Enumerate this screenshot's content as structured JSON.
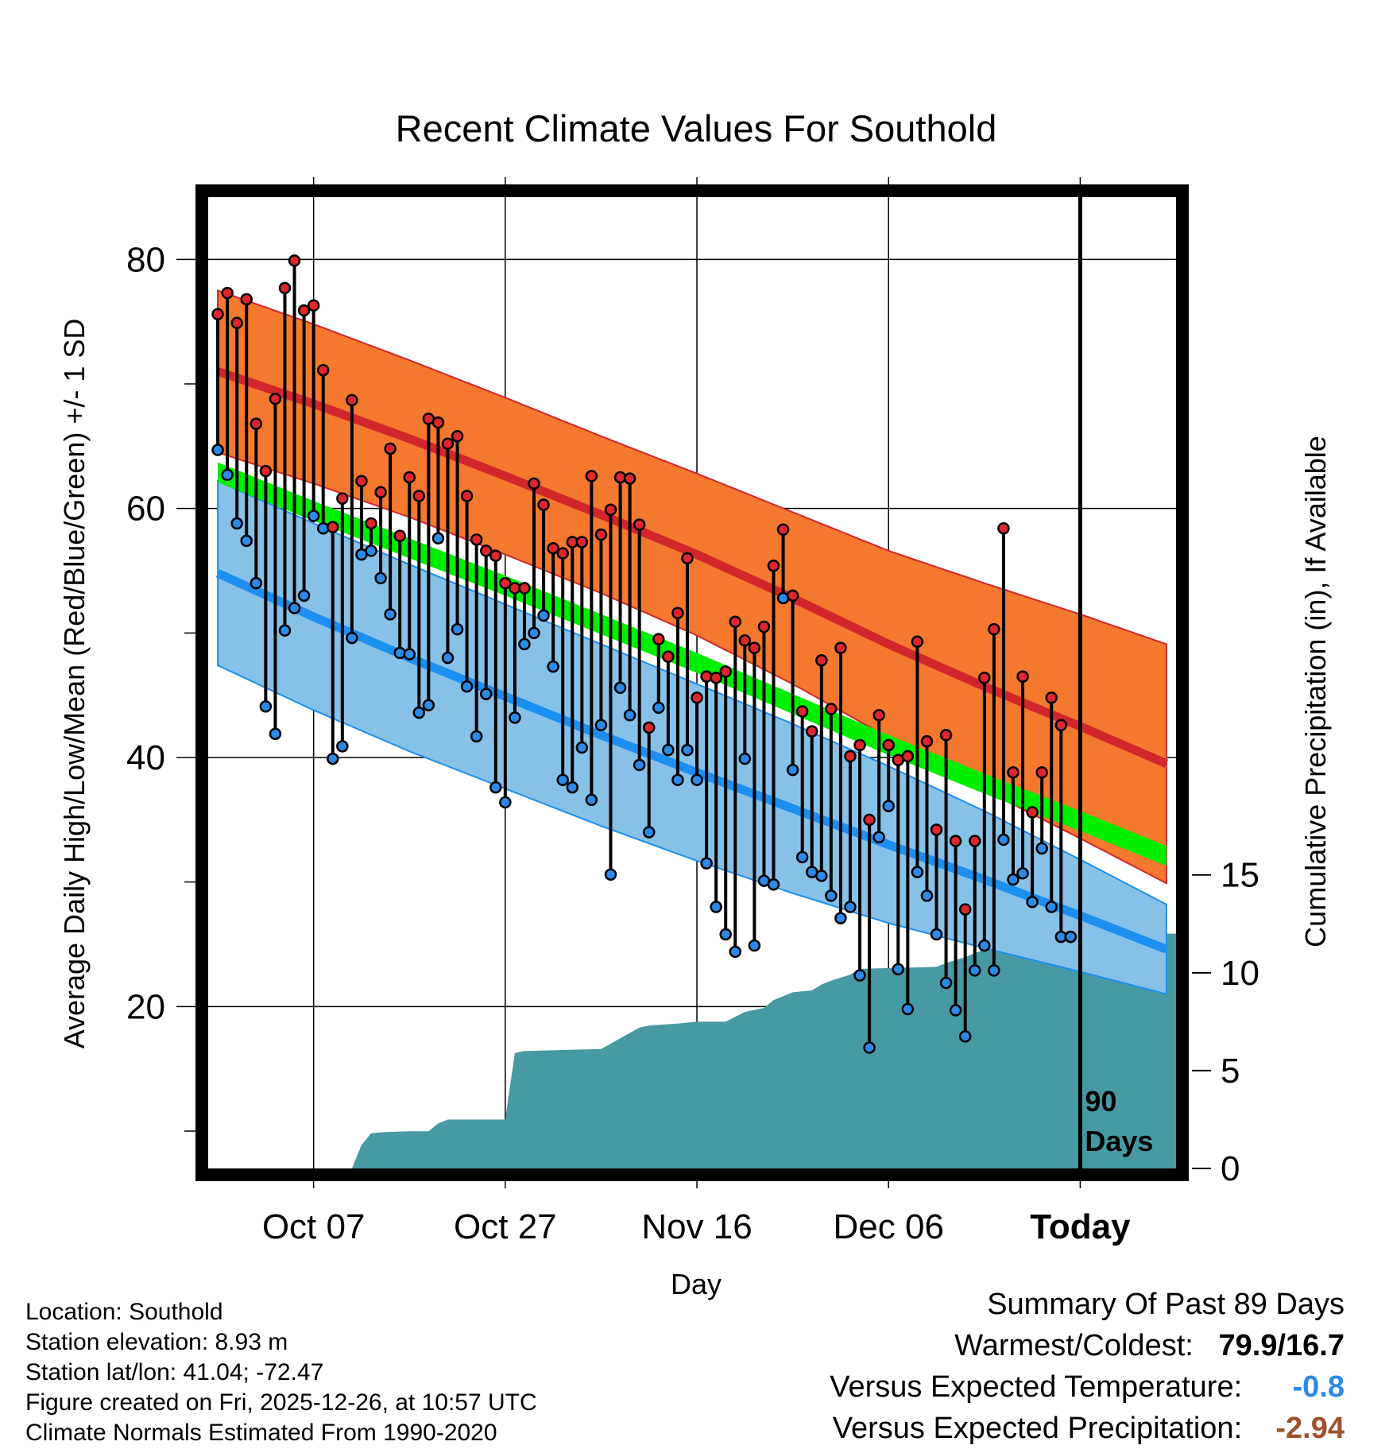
{
  "chart_data": {
    "type": "line",
    "title": "Recent Climate Values For Southold",
    "xlabel": "Day",
    "ylabel_left": "Average Daily High/Low/Mean (Red/Blue/Green) +/- 1 SD",
    "ylabel_right": "Cumulative Precipitation (in), If Available",
    "x_tick_labels": [
      "Oct 07",
      "Oct 27",
      "Nov 16",
      "Dec 06",
      "Today"
    ],
    "x_tick_days": [
      10,
      30,
      50,
      70,
      90
    ],
    "xlim": [
      -1,
      100
    ],
    "ylim_left": [
      7,
      85
    ],
    "y_ticks_left": [
      20,
      40,
      60,
      80
    ],
    "y_ticks_right": [
      0,
      5,
      10,
      15
    ],
    "right_axis_inch_per_deg": 0.6364,
    "today_day": 90,
    "today_label": "90 Days",
    "normals": {
      "days": [
        0,
        10,
        20,
        30,
        40,
        50,
        60,
        70,
        80,
        90,
        99
      ],
      "high_mean": [
        71,
        68.4,
        65.6,
        62.6,
        59.5,
        56.3,
        52.8,
        49.1,
        45.7,
        42.5,
        39.5
      ],
      "high_sd": [
        6.5,
        6.4,
        6.3,
        6.3,
        6.3,
        6.5,
        6.9,
        7.5,
        8.3,
        9.0,
        9.6
      ],
      "low_mean": [
        54.8,
        51.3,
        48.0,
        44.9,
        41.8,
        38.8,
        35.9,
        33.0,
        30.2,
        27.3,
        24.6
      ],
      "low_sd": [
        7.4,
        7.5,
        7.5,
        7.4,
        7.3,
        7.1,
        6.8,
        6.3,
        5.5,
        4.5,
        3.6
      ],
      "mean_mean": [
        62.9,
        59.8,
        56.8,
        53.8,
        50.7,
        47.6,
        44.3,
        41.0,
        37.9,
        34.9,
        32.1
      ]
    },
    "observed": {
      "days": [
        0,
        1,
        2,
        3,
        4,
        5,
        6,
        7,
        8,
        9,
        10,
        11,
        12,
        13,
        14,
        15,
        16,
        17,
        18,
        19,
        20,
        21,
        22,
        23,
        24,
        25,
        26,
        27,
        28,
        29,
        30,
        31,
        32,
        33,
        34,
        35,
        36,
        37,
        38,
        39,
        40,
        41,
        42,
        43,
        44,
        45,
        46,
        47,
        48,
        49,
        50,
        51,
        52,
        53,
        54,
        55,
        56,
        57,
        58,
        59,
        60,
        61,
        62,
        63,
        64,
        65,
        66,
        67,
        68,
        69,
        70,
        71,
        72,
        73,
        74,
        75,
        76,
        77,
        78,
        79,
        80,
        81,
        82,
        83,
        84,
        85,
        86,
        87,
        88,
        89
      ],
      "high": [
        75.6,
        77.3,
        74.9,
        76.8,
        66.8,
        63.0,
        68.8,
        77.7,
        79.9,
        75.9,
        76.3,
        71.1,
        58.5,
        60.8,
        68.7,
        62.2,
        58.8,
        61.3,
        64.8,
        57.8,
        62.5,
        61.0,
        67.2,
        66.9,
        65.2,
        65.8,
        61.0,
        57.5,
        56.6,
        56.2,
        54.0,
        53.6,
        53.6,
        62.0,
        60.3,
        56.8,
        56.4,
        57.3,
        57.3,
        62.6,
        57.9,
        59.9,
        62.5,
        62.4,
        58.7,
        42.4,
        49.5,
        48.1,
        51.6,
        56.0,
        44.8,
        46.5,
        46.4,
        46.9,
        50.9,
        49.4,
        48.8,
        50.5,
        55.4,
        58.3,
        53.0,
        43.7,
        42.1,
        47.8,
        43.9,
        48.8,
        40.1,
        41.0,
        35.0,
        43.4,
        41.0,
        39.8,
        40.1,
        49.3,
        41.3,
        34.2,
        41.8,
        33.3,
        27.8,
        33.3,
        46.4,
        50.3,
        58.4,
        38.8,
        46.5,
        35.6,
        38.8,
        44.8,
        42.6,
        25.6
      ],
      "low": [
        64.7,
        62.7,
        58.8,
        57.4,
        54.0,
        44.1,
        41.9,
        50.2,
        52.0,
        53.0,
        59.4,
        58.4,
        39.9,
        40.9,
        49.6,
        56.3,
        56.6,
        54.4,
        51.5,
        48.4,
        48.3,
        43.6,
        44.2,
        57.6,
        48.0,
        50.3,
        45.7,
        41.7,
        45.1,
        37.6,
        36.4,
        43.2,
        49.1,
        50.0,
        51.4,
        47.3,
        38.2,
        37.6,
        40.8,
        36.6,
        42.6,
        30.6,
        45.6,
        43.4,
        39.4,
        34.0,
        44.0,
        40.6,
        38.2,
        40.6,
        38.2,
        31.5,
        28.0,
        25.8,
        24.4,
        39.9,
        24.9,
        30.1,
        29.8,
        52.8,
        39.0,
        32.0,
        30.8,
        30.5,
        28.9,
        27.1,
        28.0,
        22.5,
        16.7,
        33.6,
        36.1,
        23.0,
        19.8,
        30.8,
        28.9,
        25.8,
        21.9,
        19.7,
        17.6,
        22.9,
        24.9,
        22.9,
        33.4,
        30.2,
        30.7,
        28.4,
        32.7,
        28.0,
        25.6,
        25.6
      ]
    },
    "precip_cumulative": {
      "days": [
        0,
        10,
        14,
        15,
        16,
        17,
        20,
        22,
        23,
        24,
        30,
        31,
        32,
        40,
        44,
        45,
        48,
        50,
        53,
        55,
        57,
        58,
        60,
        62,
        63,
        64,
        66,
        67,
        75,
        76,
        78,
        80,
        82,
        84,
        86,
        88,
        100
      ],
      "values": [
        0,
        0,
        0,
        1.2,
        1.8,
        1.85,
        1.9,
        1.9,
        2.3,
        2.5,
        2.5,
        5.9,
        6.0,
        6.1,
        7.2,
        7.3,
        7.4,
        7.5,
        7.5,
        8.0,
        8.2,
        8.6,
        9.0,
        9.1,
        9.4,
        9.6,
        9.9,
        10.2,
        10.3,
        10.5,
        10.8,
        11.2,
        11.5,
        11.8,
        11.9,
        12.0,
        12.0
      ]
    },
    "colors": {
      "high_band": "#f4792e",
      "high_line": "#d1262c",
      "low_band": "#87c1e8",
      "low_line": "#1c8ff0",
      "mean_band": "#00ef00",
      "overlap": "#8e0e12",
      "precip": "#4799a3",
      "high_marker": "#e0252c",
      "low_marker": "#2b8ae8"
    }
  },
  "footer": {
    "location": "Location: Southold",
    "elevation": "Station elevation: 8.93 m",
    "latlon": "Station lat/lon: 41.04; -72.47",
    "created": "Figure created on Fri, 2025-12-26, at 10:57 UTC",
    "normals": "Climate Normals Estimated From 1990-2020"
  },
  "summary": {
    "heading": "Summary Of Past 89 Days",
    "extremes_label": "Warmest/Coldest:",
    "extremes_value": "79.9/16.7",
    "temp_label": "Versus Expected Temperature:",
    "temp_value": "-0.8",
    "temp_color": "#2b8ae8",
    "precip_label": "Versus Expected Precipitation:",
    "precip_value": "-2.94",
    "precip_color": "#a0522d"
  }
}
